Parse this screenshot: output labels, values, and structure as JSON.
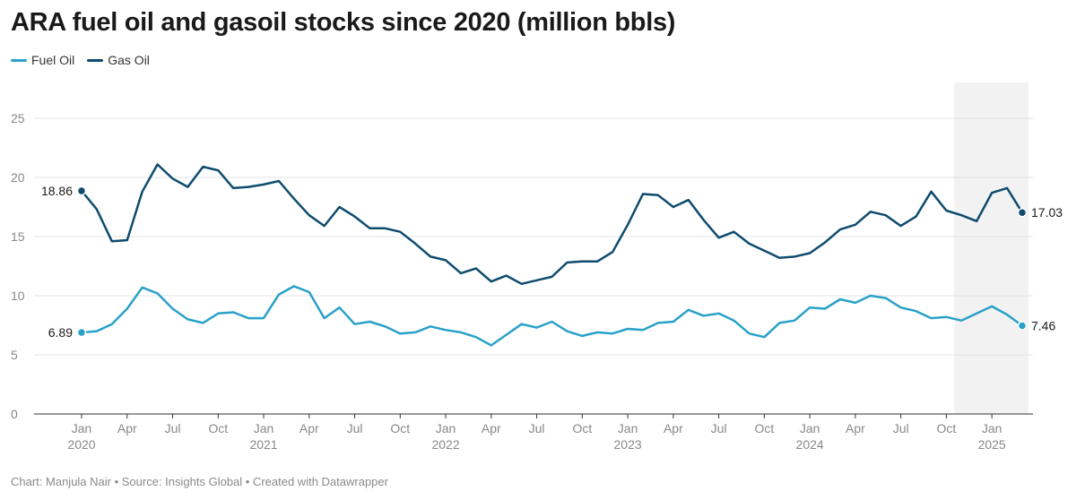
{
  "title": "ARA fuel oil and gasoil stocks since 2020 (million bbls)",
  "footer": "Chart: Manjula Nair • Source: Insights Global • Created with Datawrapper",
  "colors": {
    "fuel_oil": "#2aa1c9",
    "gas_oil": "#0e4b6e",
    "grid": "#e3e3e3",
    "highlight": "#f2f2f2"
  },
  "chart_data": {
    "type": "line",
    "title": "ARA fuel oil and gasoil stocks since 2020 (million bbls)",
    "ylim": [
      0,
      25
    ],
    "yticks": [
      0,
      5,
      10,
      15,
      20,
      25
    ],
    "grid": true,
    "legend_position": "top-left",
    "x_start": "2020-01",
    "x_end": "2025-03",
    "x_ticks": [
      {
        "month": "2020-01",
        "label": "Jan",
        "year": "2020"
      },
      {
        "month": "2020-04",
        "label": "Apr",
        "year": ""
      },
      {
        "month": "2020-07",
        "label": "Jul",
        "year": ""
      },
      {
        "month": "2020-10",
        "label": "Oct",
        "year": ""
      },
      {
        "month": "2021-01",
        "label": "Jan",
        "year": "2021"
      },
      {
        "month": "2021-04",
        "label": "Apr",
        "year": ""
      },
      {
        "month": "2021-07",
        "label": "Jul",
        "year": ""
      },
      {
        "month": "2021-10",
        "label": "Oct",
        "year": ""
      },
      {
        "month": "2022-01",
        "label": "Jan",
        "year": "2022"
      },
      {
        "month": "2022-04",
        "label": "Apr",
        "year": ""
      },
      {
        "month": "2022-07",
        "label": "Jul",
        "year": ""
      },
      {
        "month": "2022-10",
        "label": "Oct",
        "year": ""
      },
      {
        "month": "2023-01",
        "label": "Jan",
        "year": "2023"
      },
      {
        "month": "2023-04",
        "label": "Apr",
        "year": ""
      },
      {
        "month": "2023-07",
        "label": "Jul",
        "year": ""
      },
      {
        "month": "2023-10",
        "label": "Oct",
        "year": ""
      },
      {
        "month": "2024-01",
        "label": "Jan",
        "year": "2024"
      },
      {
        "month": "2024-04",
        "label": "Apr",
        "year": ""
      },
      {
        "month": "2024-07",
        "label": "Jul",
        "year": ""
      },
      {
        "month": "2024-10",
        "label": "Oct",
        "year": ""
      },
      {
        "month": "2025-01",
        "label": "Jan",
        "year": "2025"
      }
    ],
    "highlight_range": [
      "2024-11",
      "2025-03"
    ],
    "series": [
      {
        "name": "Fuel Oil",
        "color": "#2aa1c9",
        "start_label": "6.89",
        "end_label": "7.46",
        "values": [
          6.89,
          7.0,
          7.6,
          8.9,
          10.7,
          10.2,
          8.9,
          8.0,
          7.7,
          8.5,
          8.6,
          8.1,
          8.1,
          10.1,
          10.8,
          10.3,
          8.1,
          9.0,
          7.6,
          7.8,
          7.4,
          6.8,
          6.9,
          7.4,
          7.1,
          6.9,
          6.5,
          5.8,
          6.7,
          7.6,
          7.3,
          7.8,
          7.0,
          6.6,
          6.9,
          6.8,
          7.2,
          7.1,
          7.7,
          7.8,
          8.8,
          8.3,
          8.5,
          7.9,
          6.8,
          6.5,
          7.7,
          7.9,
          9.0,
          8.9,
          9.7,
          9.4,
          10.0,
          9.8,
          9.0,
          8.7,
          8.1,
          8.2,
          7.9,
          8.5,
          9.1,
          8.4,
          7.46
        ]
      },
      {
        "name": "Gas Oil",
        "color": "#0e4b6e",
        "start_label": "18.86",
        "end_label": "17.03",
        "values": [
          18.86,
          17.3,
          14.6,
          14.7,
          18.8,
          21.1,
          19.9,
          19.2,
          20.9,
          20.6,
          19.1,
          19.2,
          19.4,
          19.7,
          18.2,
          16.8,
          15.9,
          17.5,
          16.7,
          15.7,
          15.7,
          15.4,
          14.4,
          13.3,
          13.0,
          11.9,
          12.3,
          11.2,
          11.7,
          11.0,
          11.3,
          11.6,
          12.8,
          12.9,
          12.9,
          13.7,
          16.0,
          18.6,
          18.5,
          17.5,
          18.1,
          16.4,
          14.9,
          15.4,
          14.4,
          13.8,
          13.2,
          13.3,
          13.6,
          14.5,
          15.6,
          16.0,
          17.1,
          16.8,
          15.9,
          16.7,
          18.8,
          17.2,
          16.8,
          16.3,
          18.7,
          19.1,
          17.03
        ]
      }
    ]
  }
}
